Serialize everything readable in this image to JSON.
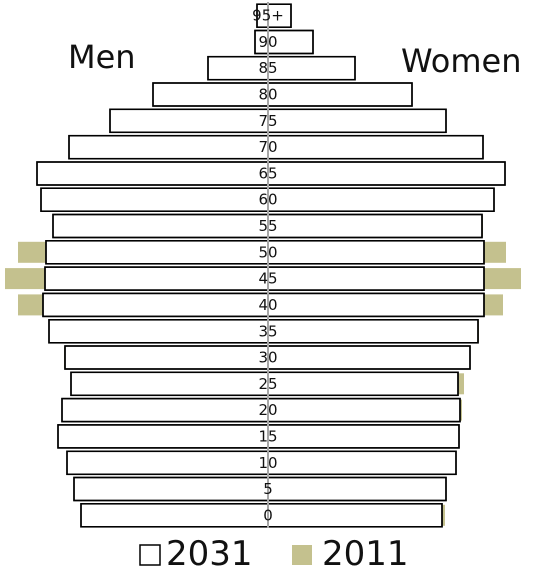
{
  "chart_data": {
    "type": "bar",
    "orientation": "horizontal",
    "layout": "population-pyramid",
    "left_label": "Men",
    "right_label": "Women",
    "categories": [
      "0",
      "5",
      "10",
      "15",
      "20",
      "25",
      "30",
      "35",
      "40",
      "45",
      "50",
      "55",
      "60",
      "65",
      "70",
      "75",
      "80",
      "85",
      "90",
      "95+"
    ],
    "series": [
      {
        "name": "2031",
        "style": "outline",
        "color": "#ffffff",
        "stroke": "#000000",
        "men": [
          187,
          194,
          201,
          210,
          206,
          197,
          203,
          219,
          225,
          223,
          222,
          215,
          227,
          231,
          199,
          158,
          115,
          60,
          13,
          11
        ],
        "women": [
          174,
          178,
          188,
          191,
          192,
          190,
          202,
          210,
          216,
          216,
          216,
          214,
          226,
          237,
          215,
          178,
          144,
          87,
          45,
          23
        ]
      },
      {
        "name": "2011",
        "style": "filled",
        "color": "#c4c18e",
        "men": [
          187,
          178,
          184,
          208,
          200,
          197,
          204,
          219,
          250,
          263,
          250,
          213,
          200,
          155,
          140,
          115,
          77,
          43,
          10,
          4
        ],
        "women": [
          177,
          165,
          177,
          188,
          194,
          196,
          202,
          211,
          235,
          253,
          238,
          215,
          198,
          159,
          157,
          146,
          116,
          72,
          20,
          14
        ]
      }
    ],
    "legend": {
      "position": "bottom",
      "order": [
        "2031",
        "2011"
      ]
    },
    "grid": false
  }
}
